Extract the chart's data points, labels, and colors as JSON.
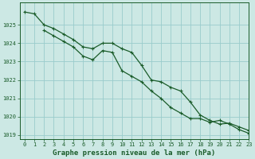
{
  "background_color": "#cce8e4",
  "plot_bg_color": "#cce8e4",
  "grid_color": "#99cccc",
  "line_color": "#1a5c2a",
  "title": "Graphe pression niveau de la mer (hPa)",
  "xlim": [
    -0.5,
    23
  ],
  "ylim": [
    1018.8,
    1026.2
  ],
  "yticks": [
    1019,
    1020,
    1021,
    1022,
    1023,
    1024,
    1025
  ],
  "xticks": [
    0,
    1,
    2,
    3,
    4,
    5,
    6,
    7,
    8,
    9,
    10,
    11,
    12,
    13,
    14,
    15,
    16,
    17,
    18,
    19,
    20,
    21,
    22,
    23
  ],
  "series1_x": [
    0,
    1,
    2,
    3,
    4,
    5,
    6,
    7,
    8,
    9,
    10,
    11,
    12,
    13,
    14,
    15,
    16,
    17,
    18,
    19,
    20,
    21,
    22,
    23
  ],
  "series1": [
    1025.7,
    1025.6,
    1025.0,
    1024.8,
    1024.5,
    1024.2,
    1023.8,
    1023.7,
    1024.0,
    1024.0,
    1023.7,
    1023.5,
    1022.8,
    1022.0,
    1021.9,
    1021.6,
    1021.4,
    1020.8,
    1020.1,
    1019.8,
    1019.6,
    1019.65,
    1019.45,
    1019.25
  ],
  "series2_x": [
    2,
    3,
    4,
    5,
    6,
    7,
    8,
    9,
    10,
    11,
    12,
    13,
    14,
    15,
    16,
    17,
    18,
    19,
    20,
    21,
    22,
    23
  ],
  "series2": [
    1024.7,
    1024.4,
    1024.1,
    1023.8,
    1023.3,
    1023.1,
    1023.6,
    1023.5,
    1022.5,
    1022.2,
    1021.9,
    1021.4,
    1021.0,
    1020.5,
    1020.2,
    1019.9,
    1019.9,
    1019.7,
    1019.8,
    1019.6,
    1019.3,
    1019.1
  ],
  "title_fontsize": 6.5,
  "tick_fontsize": 5
}
